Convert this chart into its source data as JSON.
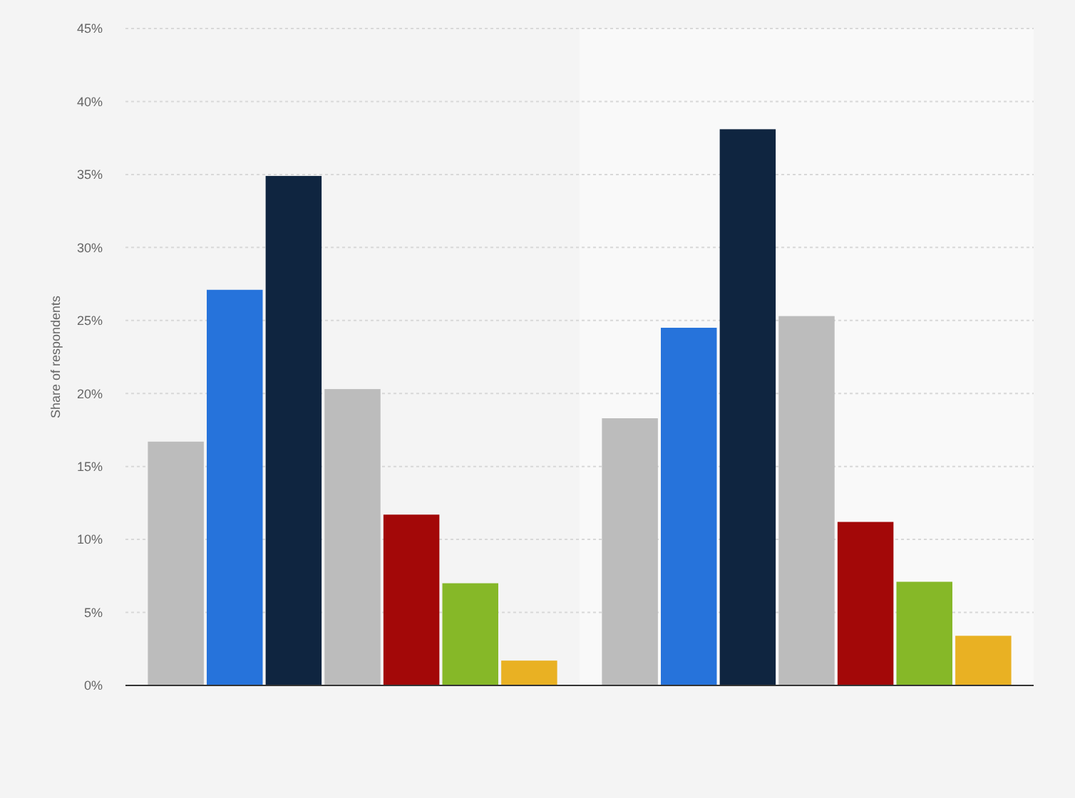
{
  "chart_data": {
    "type": "bar",
    "ylabel": "Share of respondents",
    "categories": [
      null,
      null
    ],
    "series": [
      {
        "color": "#bcbcbc",
        "values": [
          16.7,
          18.3
        ]
      },
      {
        "color": "#2673db",
        "values": [
          27.1,
          24.5
        ]
      },
      {
        "color": "#0f2540",
        "values": [
          34.9,
          38.1
        ]
      },
      {
        "color": "#bcbcbc",
        "values": [
          20.3,
          25.3
        ]
      },
      {
        "color": "#a30808",
        "values": [
          11.7,
          11.2
        ]
      },
      {
        "color": "#86b828",
        "values": [
          7.0,
          7.1
        ]
      },
      {
        "color": "#e9b123",
        "values": [
          1.7,
          3.4
        ]
      }
    ],
    "ylim": [
      0,
      45
    ],
    "yticks": [
      {
        "value": 0,
        "label": "0%"
      },
      {
        "value": 5,
        "label": "5%"
      },
      {
        "value": 10,
        "label": "10%"
      },
      {
        "value": 15,
        "label": "15%"
      },
      {
        "value": 20,
        "label": "20%"
      },
      {
        "value": 25,
        "label": "25%"
      },
      {
        "value": 30,
        "label": "30%"
      },
      {
        "value": 35,
        "label": "35%"
      },
      {
        "value": 40,
        "label": "40%"
      },
      {
        "value": 45,
        "label": "45%"
      }
    ],
    "grid": "y"
  }
}
